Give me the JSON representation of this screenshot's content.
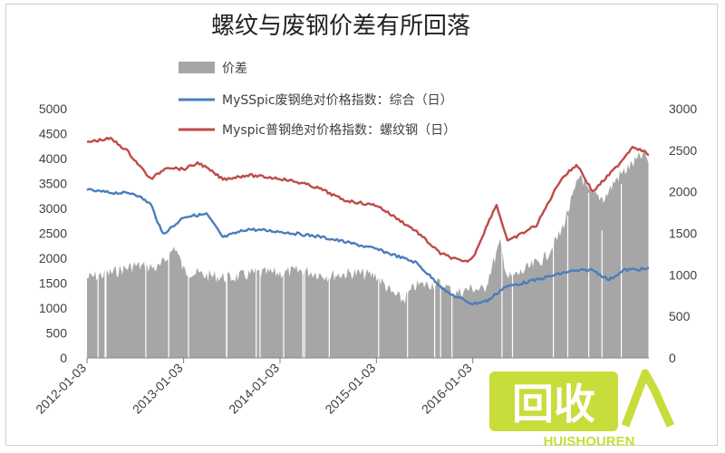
{
  "chart_data": {
    "type": "line",
    "title": "螺纹与废钢价差有所回落",
    "x_ticks": [
      "2012-01-03",
      "2013-01-03",
      "2014-01-03",
      "2015-01-03",
      "2016-01-03"
    ],
    "y_left": {
      "ticks": [
        0,
        500,
        1000,
        1500,
        2000,
        2500,
        3000,
        3500,
        4000,
        4500,
        5000
      ],
      "lim": [
        0,
        5000
      ]
    },
    "y_right": {
      "ticks": [
        0,
        500,
        1000,
        1500,
        2000,
        2500,
        3000
      ],
      "lim": [
        0,
        3000
      ]
    },
    "legend_position": "top",
    "x_range": [
      "2012-01-03",
      "2017-10-31"
    ],
    "series": [
      {
        "name": "价差",
        "kind": "area",
        "axis": "left",
        "color": "#a6a6a6",
        "points": [
          [
            "2012-01-03",
            1600
          ],
          [
            "2012-04-01",
            1700
          ],
          [
            "2012-07-01",
            1850
          ],
          [
            "2012-10-01",
            1800
          ],
          [
            "2012-11-15",
            2100
          ],
          [
            "2012-12-01",
            2250
          ],
          [
            "2013-01-03",
            1750
          ],
          [
            "2013-04-01",
            1650
          ],
          [
            "2013-07-01",
            1600
          ],
          [
            "2013-10-01",
            1700
          ],
          [
            "2014-01-03",
            1700
          ],
          [
            "2014-04-01",
            1750
          ],
          [
            "2014-07-01",
            1650
          ],
          [
            "2014-10-01",
            1700
          ],
          [
            "2015-01-03",
            1650
          ],
          [
            "2015-03-01",
            1300
          ],
          [
            "2015-04-15",
            1150
          ],
          [
            "2015-06-01",
            1450
          ],
          [
            "2015-09-01",
            1500
          ],
          [
            "2015-11-01",
            1300
          ],
          [
            "2016-01-03",
            1400
          ],
          [
            "2016-02-15",
            1350
          ],
          [
            "2016-03-01",
            1600
          ],
          [
            "2016-04-15",
            2300
          ],
          [
            "2016-05-15",
            1600
          ],
          [
            "2016-07-01",
            1700
          ],
          [
            "2016-10-01",
            2000
          ],
          [
            "2016-12-01",
            2500
          ],
          [
            "2017-01-01",
            3000
          ],
          [
            "2017-02-15",
            3700
          ],
          [
            "2017-03-15",
            3300
          ],
          [
            "2017-05-15",
            3200
          ],
          [
            "2017-07-01",
            3600
          ],
          [
            "2017-09-01",
            3900
          ],
          [
            "2017-10-15",
            4100
          ],
          [
            "2017-10-31",
            3900
          ]
        ]
      },
      {
        "name": "MySSpic废钢绝对价格指数：综合（日）",
        "kind": "line",
        "axis": "right",
        "color": "#4a7ebb",
        "points": [
          [
            "2012-01-03",
            2020
          ],
          [
            "2012-04-01",
            1990
          ],
          [
            "2012-07-01",
            1980
          ],
          [
            "2012-09-01",
            1850
          ],
          [
            "2012-10-15",
            1490
          ],
          [
            "2012-12-01",
            1600
          ],
          [
            "2013-01-03",
            1700
          ],
          [
            "2013-04-01",
            1730
          ],
          [
            "2013-06-01",
            1450
          ],
          [
            "2013-09-01",
            1550
          ],
          [
            "2014-01-03",
            1520
          ],
          [
            "2014-06-01",
            1460
          ],
          [
            "2014-09-01",
            1400
          ],
          [
            "2015-01-03",
            1310
          ],
          [
            "2015-06-01",
            1150
          ],
          [
            "2015-10-01",
            780
          ],
          [
            "2016-01-03",
            650
          ],
          [
            "2016-03-01",
            690
          ],
          [
            "2016-05-01",
            850
          ],
          [
            "2016-09-01",
            940
          ],
          [
            "2017-01-01",
            1040
          ],
          [
            "2017-04-01",
            1060
          ],
          [
            "2017-06-01",
            940
          ],
          [
            "2017-08-01",
            1060
          ],
          [
            "2017-10-31",
            1070
          ]
        ]
      },
      {
        "name": "Myspic普钢绝对价格指数：螺纹钢（日）",
        "kind": "line",
        "axis": "right",
        "color": "#be4b48",
        "points": [
          [
            "2012-01-03",
            2600
          ],
          [
            "2012-04-01",
            2640
          ],
          [
            "2012-06-01",
            2500
          ],
          [
            "2012-09-01",
            2150
          ],
          [
            "2012-11-01",
            2300
          ],
          [
            "2013-01-03",
            2270
          ],
          [
            "2013-03-01",
            2350
          ],
          [
            "2013-06-01",
            2150
          ],
          [
            "2013-09-01",
            2200
          ],
          [
            "2014-01-03",
            2160
          ],
          [
            "2014-04-01",
            2100
          ],
          [
            "2014-06-01",
            2040
          ],
          [
            "2014-09-01",
            1900
          ],
          [
            "2014-12-01",
            1850
          ],
          [
            "2015-01-03",
            1840
          ],
          [
            "2015-06-01",
            1530
          ],
          [
            "2015-09-01",
            1260
          ],
          [
            "2015-12-01",
            1150
          ],
          [
            "2016-01-03",
            1200
          ],
          [
            "2016-04-01",
            1850
          ],
          [
            "2016-05-15",
            1400
          ],
          [
            "2016-09-01",
            1600
          ],
          [
            "2016-12-01",
            2150
          ],
          [
            "2017-02-01",
            2330
          ],
          [
            "2017-04-01",
            2000
          ],
          [
            "2017-07-01",
            2300
          ],
          [
            "2017-09-01",
            2550
          ],
          [
            "2017-10-31",
            2450
          ]
        ]
      }
    ]
  },
  "watermark": {
    "main": "回收",
    "sub": "HUISHOUREN",
    "color": "#c8dc3c"
  }
}
